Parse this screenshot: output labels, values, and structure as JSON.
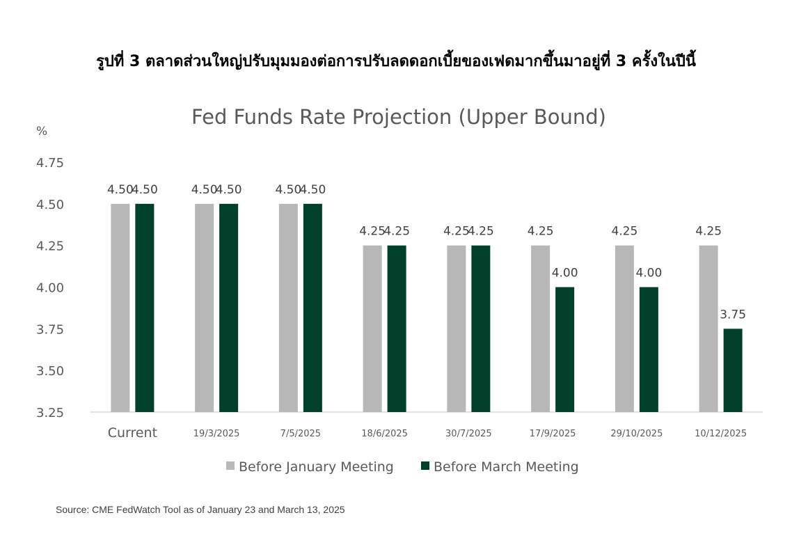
{
  "page": {
    "heading": "รูปที่ 3 ตลาดส่วนใหญ่ปรับมุมมองต่อการปรับลดดอกเบี้ยของเฟดมากขึ้นมาอยู่ที่ 3 ครั้งในปีนี้",
    "source": "Source: CME FedWatch Tool as of January 23 and March 13, 2025"
  },
  "chart_data": {
    "type": "bar",
    "title": "Fed Funds Rate Projection (Upper Bound)",
    "ylabel": "%",
    "xlabel": "",
    "ylim": [
      3.25,
      4.75
    ],
    "yticks": [
      "3.25",
      "3.50",
      "3.75",
      "4.00",
      "4.25",
      "4.50",
      "4.75"
    ],
    "categories": [
      "Current",
      "19/3/2025",
      "7/5/2025",
      "18/6/2025",
      "30/7/2025",
      "17/9/2025",
      "29/10/2025",
      "10/12/2025"
    ],
    "series": [
      {
        "name": "Before January Meeting",
        "color": "#b7b7b7",
        "values": [
          4.5,
          4.5,
          4.5,
          4.25,
          4.25,
          4.25,
          4.25,
          4.25
        ],
        "labels": [
          "4.50",
          "4.50",
          "4.50",
          "4.25",
          "4.25",
          "4.25",
          "4.25",
          "4.25"
        ]
      },
      {
        "name": "Before March Meeting",
        "color": "#00402a",
        "values": [
          4.5,
          4.5,
          4.5,
          4.25,
          4.25,
          4.0,
          4.0,
          3.75
        ],
        "labels": [
          "4.50",
          "4.50",
          "4.50",
          "4.25",
          "4.25",
          "4.00",
          "4.00",
          "3.75"
        ]
      }
    ],
    "grid": false,
    "legend_position": "bottom"
  }
}
